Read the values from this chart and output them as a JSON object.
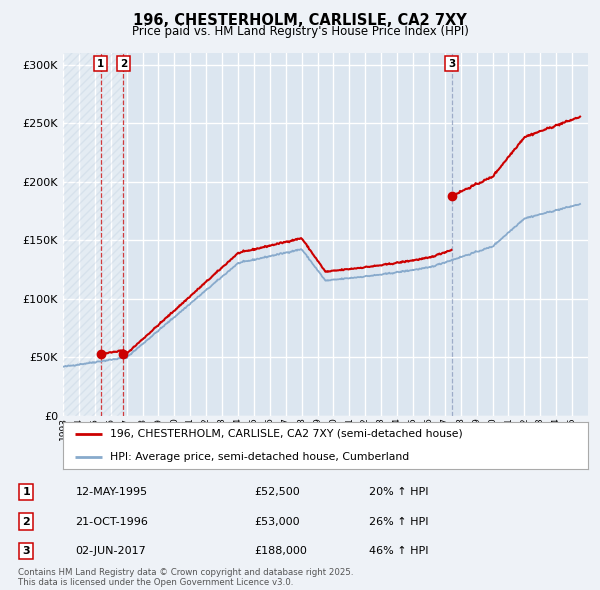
{
  "title_line1": "196, CHESTERHOLM, CARLISLE, CA2 7XY",
  "title_line2": "Price paid vs. HM Land Registry's House Price Index (HPI)",
  "ylim": [
    0,
    310000
  ],
  "yticks": [
    0,
    50000,
    100000,
    150000,
    200000,
    250000,
    300000
  ],
  "background_color": "#eef2f7",
  "plot_bg_color": "#dce6f0",
  "hatch_color": "#b0c4d8",
  "grid_color": "#ffffff",
  "red_line_color": "#cc0000",
  "blue_line_color": "#88aacc",
  "vline_red_color": "#cc0000",
  "vline_blue_color": "#8899bb",
  "legend_label_red": "196, CHESTERHOLM, CARLISLE, CA2 7XY (semi-detached house)",
  "legend_label_blue": "HPI: Average price, semi-detached house, Cumberland",
  "transactions": [
    {
      "num": 1,
      "date": "12-MAY-1995",
      "price": 52500,
      "pct": "20% ↑ HPI",
      "year_x": 1995.36
    },
    {
      "num": 2,
      "date": "21-OCT-1996",
      "price": 53000,
      "pct": "26% ↑ HPI",
      "year_x": 1996.8
    },
    {
      "num": 3,
      "date": "02-JUN-2017",
      "price": 188000,
      "pct": "46% ↑ HPI",
      "year_x": 2017.42
    }
  ],
  "footer_text": "Contains HM Land Registry data © Crown copyright and database right 2025.\nThis data is licensed under the Open Government Licence v3.0.",
  "xmin": 1993,
  "xmax": 2026,
  "hatch_end": 1996.8
}
